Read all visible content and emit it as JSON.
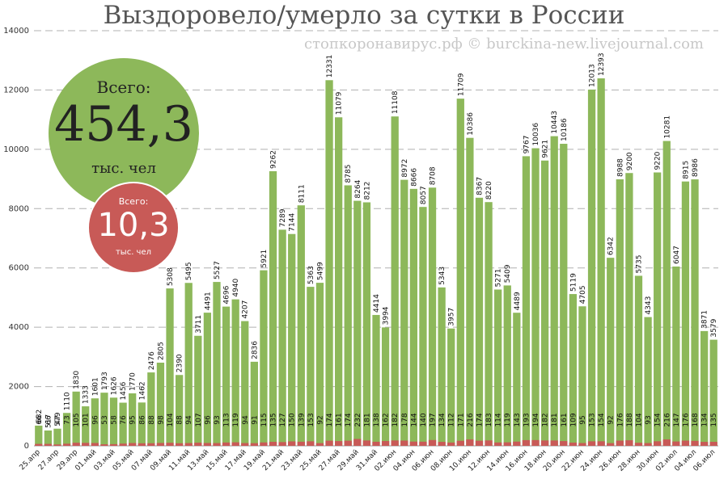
{
  "chart_data": {
    "type": "bar",
    "title": "Выздоровело/умерло за сутки в России",
    "watermark": "стопкоронавирус.рф © burckina-new.livejournal.com",
    "ylim": [
      0,
      14000
    ],
    "yticks": [
      0,
      2000,
      4000,
      6000,
      8000,
      10000,
      12000,
      14000
    ],
    "grid": true,
    "stacked": true,
    "colors": {
      "recovered": "#8db85a",
      "deaths": "#c85a57",
      "grid": "#b0b0b0"
    },
    "categories": [
      "25.апр",
      "26.апр",
      "27.апр",
      "28.апр",
      "29.апр",
      "30.апр",
      "01.май",
      "02.май",
      "03.май",
      "04.май",
      "05.май",
      "06.май",
      "07.май",
      "08.май",
      "09.май",
      "10.май",
      "11.май",
      "12.май",
      "13.май",
      "14.май",
      "15.май",
      "16.май",
      "17.май",
      "18.май",
      "19.май",
      "20.май",
      "21.май",
      "22.май",
      "23.май",
      "24.май",
      "25.май",
      "26.май",
      "27.май",
      "28.май",
      "29.май",
      "30.май",
      "31.май",
      "01.июн",
      "02.июн",
      "03.июн",
      "04.июн",
      "05.июн",
      "06.июн",
      "07.июн",
      "08.июн",
      "09.июн",
      "10.июн",
      "11.июн",
      "12.июн",
      "13.июн",
      "14.июн",
      "15.июн",
      "16.июн",
      "17.июн",
      "18.июн",
      "19.июн",
      "20.июн",
      "21.июн",
      "22.июн",
      "23.июн",
      "24.июн",
      "25.июн",
      "26.июн",
      "27.июн",
      "28.июн",
      "29.июн",
      "30.июн",
      "01.июл",
      "02.июл",
      "03.июл",
      "04.июл",
      "05.июл",
      "06.июл"
    ],
    "series": [
      {
        "key": "recovered",
        "values": [
          682,
          517,
          579,
          1110,
          1830,
          1333,
          1601,
          1793,
          1626,
          1456,
          1770,
          1462,
          2476,
          2805,
          5308,
          2390,
          5495,
          3711,
          4491,
          5527,
          4696,
          4940,
          4207,
          2836,
          5921,
          9262,
          7289,
          7144,
          8111,
          5363,
          5499,
          12331,
          11079,
          8785,
          8264,
          8212,
          4414,
          3994,
          11108,
          8972,
          8666,
          8057,
          8708,
          5343,
          3957,
          11709,
          10386,
          8367,
          8220,
          5271,
          5409,
          4489,
          9767,
          10036,
          9621,
          10443,
          10186,
          5119,
          4705,
          12013,
          12393,
          6342,
          8988,
          9200,
          5735,
          4343,
          9220,
          10281,
          6047,
          8915,
          8986,
          3871,
          3579
        ]
      },
      {
        "key": "deaths",
        "values": [
          66,
          66,
          47,
          73,
          105,
          101,
          96,
          53,
          58,
          76,
          95,
          86,
          88,
          98,
          104,
          88,
          94,
          107,
          96,
          93,
          113,
          119,
          94,
          91,
          115,
          135,
          127,
          150,
          139,
          153,
          92,
          174,
          161,
          174,
          232,
          181,
          138,
          162,
          182,
          178,
          144,
          140,
          197,
          134,
          112,
          171,
          216,
          174,
          183,
          114,
          119,
          143,
          193,
          194,
          182,
          181,
          161,
          109,
          95,
          153,
          154,
          92,
          176,
          188,
          104,
          93,
          154,
          216,
          147,
          176,
          168,
          134,
          135
        ]
      }
    ],
    "labeled_ticks": [
      "25.апр",
      "27.апр",
      "29.апр",
      "01.май",
      "03.май",
      "05.май",
      "07.май",
      "09.май",
      "11.май",
      "13.май",
      "15.май",
      "17.май",
      "19.май",
      "21.май",
      "23.май",
      "25.май",
      "27.май",
      "29.май",
      "31.май",
      "02.июн",
      "04.июн",
      "06.июн",
      "08.июн",
      "10.июн",
      "12.июн",
      "14.июн",
      "16.июн",
      "18.июн",
      "20.июн",
      "22.июн",
      "24.июн",
      "26.июн",
      "28.июн",
      "30.июн",
      "02.июл",
      "04.июл",
      "06.июл"
    ],
    "totals": {
      "recovered_label": "Всего:",
      "recovered_value": "454,3",
      "recovered_unit": "тыс. чел",
      "deaths_label": "Всего:",
      "deaths_value": "10,3",
      "deaths_unit": "тыс. чел"
    }
  }
}
